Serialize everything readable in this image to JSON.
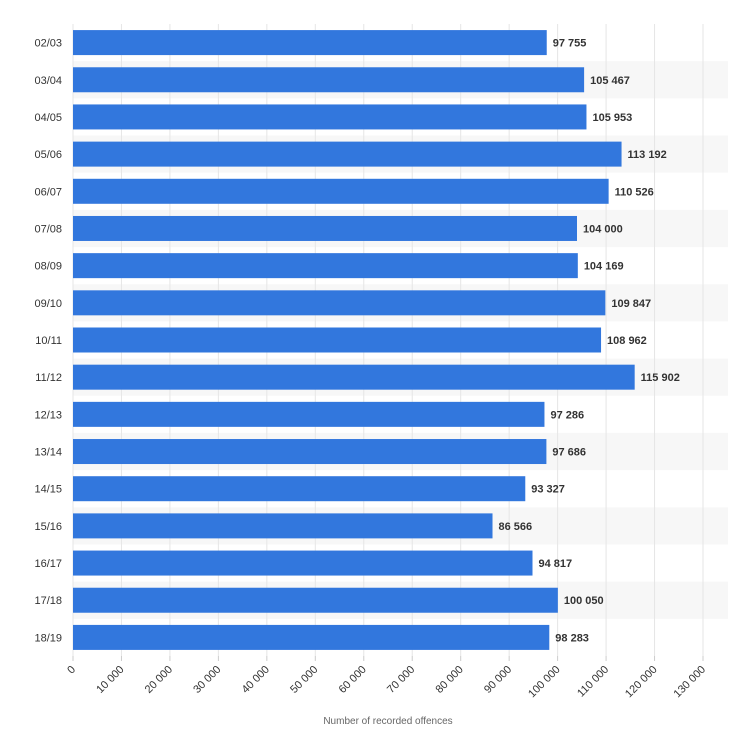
{
  "chart_data": {
    "type": "bar",
    "orientation": "horizontal",
    "categories": [
      "02/03",
      "03/04",
      "04/05",
      "05/06",
      "06/07",
      "07/08",
      "08/09",
      "09/10",
      "10/11",
      "11/12",
      "12/13",
      "13/14",
      "14/15",
      "15/16",
      "16/17",
      "17/18",
      "18/19"
    ],
    "values": [
      97755,
      105467,
      105953,
      113192,
      110526,
      104000,
      104169,
      109847,
      108962,
      115902,
      97286,
      97686,
      93327,
      86566,
      94817,
      100050,
      98283
    ],
    "value_labels": [
      "97 755",
      "105 467",
      "105 953",
      "113 192",
      "110 526",
      "104 000",
      "104 169",
      "109 847",
      "108 962",
      "115 902",
      "97 286",
      "97 686",
      "93 327",
      "86 566",
      "94 817",
      "100 050",
      "98 283"
    ],
    "x_ticks": [
      0,
      10000,
      20000,
      30000,
      40000,
      50000,
      60000,
      70000,
      80000,
      90000,
      100000,
      110000,
      120000,
      130000
    ],
    "x_tick_labels": [
      "0",
      "10 000",
      "20 000",
      "30 000",
      "40 000",
      "50 000",
      "60 000",
      "70 000",
      "80 000",
      "90 000",
      "100 000",
      "110 000",
      "120 000",
      "130 000"
    ],
    "xlim": [
      0,
      130000
    ],
    "xlabel": "Number of recorded offences",
    "ylabel": "",
    "title": "",
    "grid": true,
    "legend": false,
    "bar_color": "#3277dd",
    "alt_row_color": "#f7f7f7",
    "grid_color": "#e6e6e6"
  }
}
